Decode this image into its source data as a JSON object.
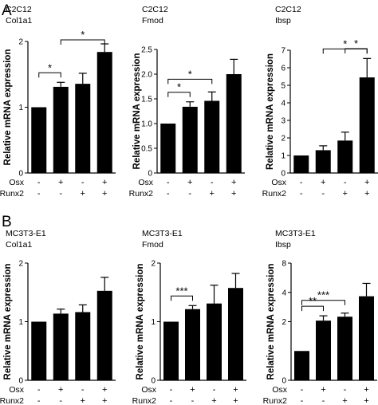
{
  "panels": [
    {
      "letter": "A"
    },
    {
      "letter": "B"
    }
  ],
  "chart_data": [
    {
      "type": "bar",
      "panel": "A",
      "cell_line": "C2C12",
      "gene": "Col1a1",
      "ylabel": "Relative mRNA expression",
      "ylim": [
        0,
        2
      ],
      "yscale": "log",
      "yticks": [
        0,
        1,
        2
      ],
      "ytick_labels": [
        "0",
        "1",
        "2"
      ],
      "values": [
        1.0,
        1.24,
        1.28,
        1.79
      ],
      "errors": [
        0.02,
        0.06,
        0.15,
        0.16
      ],
      "rows": [
        {
          "label": "Osx",
          "marks": [
            "-",
            "+",
            "-",
            "+"
          ]
        },
        {
          "label": "Runx2",
          "marks": [
            "-",
            "-",
            "+",
            "+"
          ]
        }
      ],
      "significance": [
        {
          "from": 0,
          "to": 1,
          "label": "*"
        },
        {
          "from": 1,
          "to": 3,
          "label": "*"
        }
      ]
    },
    {
      "type": "bar",
      "panel": "A",
      "cell_line": "C2C12",
      "gene": "Fmod",
      "ylabel": "Relative mRNA expression",
      "ylim": [
        0,
        2.5
      ],
      "yscale": "linear",
      "yticks": [
        0,
        0.5,
        1.0,
        1.5,
        2.0,
        2.5
      ],
      "ytick_labels": [
        "0",
        "0.5",
        "1.0",
        "1.5",
        "2.0",
        "2.5"
      ],
      "values": [
        1.0,
        1.34,
        1.46,
        2.0
      ],
      "errors": [
        0.02,
        0.1,
        0.18,
        0.3
      ],
      "rows": [
        {
          "label": "Osx",
          "marks": [
            "-",
            "+",
            "-",
            "+"
          ]
        },
        {
          "label": "Runx2",
          "marks": [
            "-",
            "-",
            "+",
            "+"
          ]
        }
      ],
      "significance": [
        {
          "from": 0,
          "to": 1,
          "label": "*"
        },
        {
          "from": 0,
          "to": 2,
          "label": "*"
        }
      ]
    },
    {
      "type": "bar",
      "panel": "A",
      "cell_line": "C2C12",
      "gene": "Ibsp",
      "ylabel": "Relative mRNA expression",
      "ylim": [
        0,
        7
      ],
      "yscale": "linear",
      "yticks": [
        0,
        1,
        2,
        3,
        4,
        5,
        6,
        7
      ],
      "ytick_labels": [
        "0",
        "1",
        "2",
        "3",
        "4",
        "5",
        "6",
        "7"
      ],
      "values": [
        1.0,
        1.3,
        1.85,
        5.45
      ],
      "errors": [
        0.02,
        0.25,
        0.48,
        1.08
      ],
      "rows": [
        {
          "label": "Osx",
          "marks": [
            "-",
            "+",
            "-",
            "+"
          ]
        },
        {
          "label": "Runx2",
          "marks": [
            "-",
            "-",
            "+",
            "+"
          ]
        }
      ],
      "significance": [
        {
          "from": 1,
          "to": 3,
          "label": "*"
        },
        {
          "from": 2,
          "to": 3,
          "label": "*"
        }
      ]
    },
    {
      "type": "bar",
      "panel": "B",
      "cell_line": "MC3T3-E1",
      "gene": "Col1a1",
      "ylabel": "Relative mRNA expression",
      "ylim": [
        0,
        2
      ],
      "yscale": "log",
      "yticks": [
        0,
        1,
        2
      ],
      "ytick_labels": [
        "0",
        "1",
        "2"
      ],
      "values": [
        1.0,
        1.1,
        1.12,
        1.44
      ],
      "errors": [
        0.02,
        0.06,
        0.1,
        0.25
      ],
      "rows": [
        {
          "label": "Osx",
          "marks": [
            "-",
            "+",
            "-",
            "+"
          ]
        },
        {
          "label": "Runx2",
          "marks": [
            "-",
            "-",
            "+",
            "+"
          ]
        }
      ],
      "significance": []
    },
    {
      "type": "bar",
      "panel": "B",
      "cell_line": "MC3T3-E1",
      "gene": "Fmod",
      "ylabel": "Relative mRNA expression",
      "ylim": [
        0,
        2
      ],
      "yscale": "log",
      "yticks": [
        0,
        1,
        2
      ],
      "ytick_labels": [
        "0",
        "1",
        "2"
      ],
      "values": [
        1.0,
        1.16,
        1.24,
        1.49
      ],
      "errors": [
        0.02,
        0.05,
        0.3,
        0.28
      ],
      "rows": [
        {
          "label": "Osx",
          "marks": [
            "-",
            "+",
            "-",
            "+"
          ]
        },
        {
          "label": "Runx2",
          "marks": [
            "-",
            "-",
            "+",
            "+"
          ]
        }
      ],
      "significance": [
        {
          "from": 0,
          "to": 1,
          "label": "***"
        }
      ]
    },
    {
      "type": "bar",
      "panel": "B",
      "cell_line": "MC3T3-E1",
      "gene": "Ibsp",
      "ylabel": "Relative mRNA expression",
      "ylim": [
        0,
        8
      ],
      "yscale": "log",
      "yticks": [
        0,
        2,
        4,
        8
      ],
      "ytick_labels": [
        "0",
        "2",
        "4",
        "8"
      ],
      "values": [
        1.0,
        2.05,
        2.25,
        3.65
      ],
      "errors": [
        0.02,
        0.25,
        0.2,
        1.3
      ],
      "rows": [
        {
          "label": "Osx",
          "marks": [
            "-",
            "+",
            "-",
            "+"
          ]
        },
        {
          "label": "Runx2",
          "marks": [
            "-",
            "-",
            "+",
            "+"
          ]
        }
      ],
      "significance": [
        {
          "from": 0,
          "to": 1,
          "label": "**"
        },
        {
          "from": 0,
          "to": 2,
          "label": "***"
        }
      ]
    }
  ]
}
